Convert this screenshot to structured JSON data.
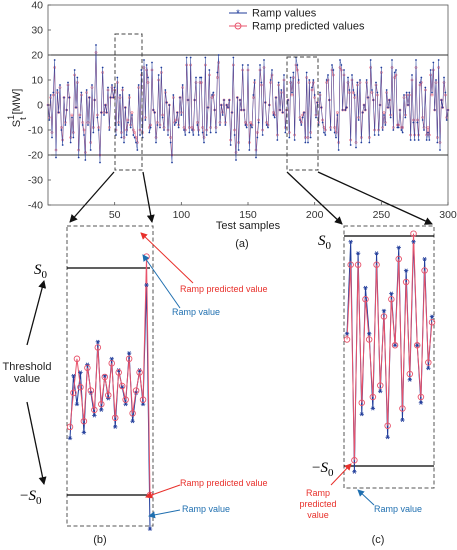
{
  "chart_data": [
    {
      "type": "line",
      "panel": "(a)",
      "xlabel": "Test samples",
      "ylabel": "S",
      "ylabel_sup": "1",
      "ylabel_sub": "t",
      "ylabel_unit": "[MW]",
      "xlim": [
        0,
        300
      ],
      "ylim": [
        -40,
        40
      ],
      "xticks": [
        50,
        100,
        150,
        200,
        250,
        300
      ],
      "yticks": [
        -40,
        -30,
        -20,
        -10,
        0,
        10,
        20,
        30,
        40
      ],
      "threshold_lines": [
        20,
        -20
      ],
      "legend": [
        "Ramp values",
        "Ramp predicted values"
      ],
      "legend_position": "top-center",
      "zoom_windows": [
        [
          52,
          68
        ],
        [
          180,
          198
        ]
      ],
      "series": [
        {
          "name": "Ramp values",
          "color": "#1f3b9a",
          "marker": "asterisk",
          "values": [
            0,
            -6,
            4,
            -13,
            5,
            18,
            -21,
            6,
            -3,
            8,
            -10,
            -16,
            3,
            -8,
            -2,
            9,
            3,
            -15,
            -5,
            -13,
            14,
            -1,
            11,
            -21,
            -5,
            5,
            -8,
            -12,
            -22,
            6,
            -8,
            3,
            -18,
            8,
            -11,
            2,
            24,
            -5,
            -10,
            -23,
            -3,
            15,
            -4,
            0,
            -3,
            7,
            -10,
            3,
            8,
            3,
            7,
            -12,
            11,
            -8,
            4,
            -13,
            7,
            -15,
            -1,
            -12,
            -7,
            4,
            -9,
            -4,
            -12,
            -13,
            -15,
            -18,
            8,
            -12,
            14,
            -13,
            18,
            -6,
            16,
            11,
            -11,
            -9,
            17,
            -2,
            -3,
            -15,
            -8,
            12,
            -9,
            15,
            -5,
            -10,
            6,
            1,
            -12,
            0,
            -15,
            -23,
            4,
            -8,
            -7,
            -3,
            -9,
            3,
            -4,
            8,
            -10,
            -12,
            19,
            2,
            -11,
            19,
            -10,
            -12,
            2,
            11,
            -8,
            -12,
            11,
            11,
            -11,
            -15,
            19,
            -12,
            -1,
            14,
            -11,
            4,
            5,
            -2,
            -11,
            13,
            20,
            -8,
            0,
            -4,
            2,
            -8,
            0,
            -1,
            2,
            -16,
            -3,
            19,
            -12,
            -22,
            3,
            -18,
            2,
            -2,
            16,
            -2,
            -8,
            -9,
            16,
            -18,
            -8,
            -9,
            4,
            10,
            -21,
            -13,
            -7,
            16,
            9,
            -12,
            18,
            1,
            -8,
            -9,
            0,
            10,
            14,
            -4,
            -5,
            3,
            -14,
            9,
            -2,
            6,
            -3,
            12,
            -11,
            -2,
            2,
            -13,
            11,
            5,
            13,
            -14,
            19,
            16,
            10,
            -6,
            -8,
            -5,
            -3,
            -15,
            13,
            -15,
            10,
            -13,
            7,
            10,
            4,
            -5,
            1,
            -8,
            5,
            -1,
            -7,
            -11,
            -12,
            10,
            12,
            2,
            -10,
            16,
            14,
            -11,
            -13,
            -4,
            -18,
            18,
            16,
            -2,
            14,
            -2,
            -1,
            11,
            6,
            -16,
            12,
            6,
            4,
            -17,
            9,
            -6,
            10,
            -15,
            -3,
            0,
            -2,
            10,
            3,
            -15,
            18,
            6,
            2,
            -12,
            9,
            5,
            -12,
            0,
            15,
            -10,
            -4,
            -8,
            6,
            -1,
            2,
            -5,
            18,
            -10,
            13,
            14,
            -9,
            -9,
            -2,
            -10,
            -11,
            4,
            -5,
            5,
            0,
            5,
            -14,
            12,
            -7,
            -14,
            18,
            -7,
            -14,
            9,
            11,
            -6,
            -10,
            7,
            -14,
            -11,
            -14,
            14,
            5,
            17,
            -2,
            10,
            -15,
            18,
            -18,
            2,
            -1,
            11,
            5,
            -6,
            -2
          ]
        },
        {
          "name": "Ramp predicted values",
          "color": "#e8536b",
          "marker": "circle",
          "values": [
            0,
            -5,
            3,
            -11,
            4,
            15,
            -18,
            5,
            -3,
            7,
            -9,
            -14,
            3,
            -7,
            -2,
            8,
            3,
            -13,
            -4,
            -11,
            12,
            -1,
            9,
            -18,
            -4,
            4,
            -7,
            -10,
            -19,
            5,
            -7,
            3,
            -15,
            7,
            -9,
            2,
            21,
            -4,
            -9,
            -20,
            -3,
            13,
            -3,
            0,
            -3,
            6,
            -9,
            3,
            7,
            3,
            6,
            -10,
            9,
            -7,
            3,
            -11,
            6,
            -13,
            -1,
            -10,
            -6,
            3,
            -8,
            -3,
            -10,
            -11,
            -13,
            -15,
            7,
            -10,
            12,
            -11,
            15,
            -5,
            14,
            9,
            -9,
            -8,
            14,
            -2,
            -3,
            -13,
            -7,
            10,
            -8,
            13,
            -4,
            -9,
            5,
            1,
            -10,
            0,
            -13,
            -20,
            3,
            -7,
            -6,
            -3,
            -8,
            3,
            -3,
            7,
            -9,
            -10,
            16,
            2,
            -9,
            16,
            -9,
            -10,
            2,
            9,
            -7,
            -10,
            9,
            9,
            -9,
            -13,
            16,
            -10,
            -1,
            12,
            -9,
            3,
            4,
            -2,
            -9,
            11,
            17,
            -7,
            0,
            -3,
            2,
            -7,
            0,
            -1,
            2,
            -14,
            -3,
            16,
            -10,
            -19,
            3,
            -15,
            2,
            -2,
            14,
            -2,
            -7,
            -8,
            14,
            -15,
            -7,
            -8,
            3,
            9,
            -18,
            -11,
            -6,
            14,
            8,
            -10,
            15,
            1,
            -7,
            -8,
            0,
            9,
            12,
            -3,
            -4,
            3,
            -12,
            8,
            -2,
            5,
            -3,
            10,
            -9,
            -2,
            2,
            -11,
            9,
            4,
            11,
            -12,
            16,
            14,
            9,
            -5,
            -7,
            -4,
            -3,
            -13,
            11,
            -13,
            9,
            -11,
            6,
            9,
            3,
            -4,
            1,
            -7,
            4,
            -1,
            -6,
            -9,
            -10,
            9,
            10,
            2,
            -9,
            14,
            12,
            -9,
            -11,
            -3,
            -15,
            15,
            14,
            -2,
            12,
            -2,
            -1,
            9,
            5,
            -14,
            10,
            5,
            3,
            -15,
            8,
            -5,
            9,
            -13,
            -3,
            0,
            -2,
            9,
            3,
            -13,
            15,
            5,
            2,
            -10,
            8,
            4,
            -10,
            0,
            13,
            -9,
            -3,
            -7,
            5,
            -1,
            2,
            -4,
            15,
            -9,
            11,
            12,
            -8,
            -8,
            -2,
            -9,
            -9,
            3,
            -4,
            4,
            0,
            4,
            -12,
            10,
            -6,
            -12,
            15,
            -6,
            -12,
            8,
            9,
            -5,
            -9,
            6,
            -12,
            -9,
            -12,
            12,
            4,
            14,
            -2,
            9,
            -13,
            15,
            -15,
            2,
            -1,
            9,
            4,
            -5,
            -2
          ]
        }
      ]
    },
    {
      "type": "line",
      "panel": "(b)",
      "threshold_labels": [
        "S0",
        "−S0"
      ],
      "series": [
        {
          "name": "Ramp value",
          "color": "#1f3b9a",
          "values": [
            -0.5,
            0.05,
            -0.2,
            0.08,
            -0.45,
            0.15,
            -0.1,
            -0.3,
            0.35,
            -0.25,
            0.05,
            -0.15,
            0.2,
            -0.4,
            0.1,
            -0.05,
            -0.2,
            0.25,
            -0.35,
            -0.1,
            0.1,
            -0.2,
            0.85,
            -1.3
          ]
        },
        {
          "name": "Ramp predicted value",
          "color": "#e8536b",
          "values": [
            -0.4,
            -0.1,
            0.2,
            -0.05,
            -0.35,
            0.12,
            -0.08,
            -0.25,
            0.3,
            -0.2,
            0.04,
            -0.12,
            0.16,
            -0.32,
            0.08,
            -0.04,
            -0.16,
            0.2,
            -0.28,
            -0.08,
            0.08,
            -0.16,
            1.1,
            -1.0
          ]
        }
      ]
    },
    {
      "type": "line",
      "panel": "(c)",
      "threshold_labels": [
        "S0",
        "−S0"
      ],
      "series": [
        {
          "name": "Ramp value",
          "color": "#1f3b9a",
          "values": [
            0.15,
            0.95,
            -1.05,
            0.85,
            -0.55,
            0.55,
            0.15,
            -0.5,
            0.85,
            -0.35,
            0.35,
            -0.75,
            0.5,
            0.05,
            0.9,
            -0.6,
            0.7,
            -0.25,
            0.95,
            0.05,
            -0.45,
            0.8,
            -0.15,
            0.3
          ]
        },
        {
          "name": "Ramp predicted value",
          "color": "#e8536b",
          "values": [
            0.1,
            0.75,
            -0.95,
            0.75,
            -0.45,
            0.45,
            0.1,
            -0.4,
            0.75,
            -0.3,
            0.3,
            -0.65,
            0.45,
            0.05,
            0.8,
            -0.5,
            0.6,
            -0.2,
            1.02,
            0.05,
            -0.4,
            0.7,
            -0.1,
            0.25
          ]
        }
      ]
    }
  ],
  "panel_labels": {
    "a": "(a)",
    "b": "(b)",
    "c": "(c)"
  },
  "annotations": {
    "threshold_value": [
      "Threshold",
      "value"
    ],
    "b_pred_top": "Ramp predicted value",
    "b_val_top": "Ramp value",
    "b_pred_bottom": "Ramp predicted value",
    "b_val_bottom": "Ramp value",
    "c_pred": [
      "Ramp",
      "predicted",
      "value"
    ],
    "c_val": "Ramp value"
  },
  "s0_symbol": "S",
  "s0_sub": "0",
  "neg_sign": "−"
}
